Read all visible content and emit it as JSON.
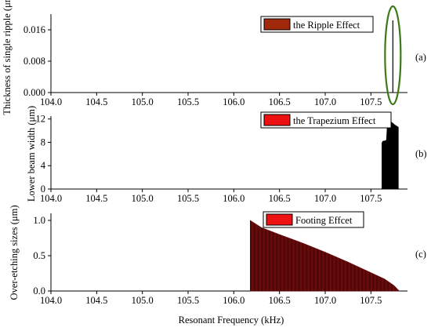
{
  "chart_data": [
    {
      "id": "a",
      "type": "line",
      "panel_label": "(a)",
      "ylabel": "Thickness of single ripple (μm)",
      "xlabel": "",
      "xlim": [
        104.0,
        107.9
      ],
      "ylim": [
        0,
        0.02
      ],
      "xticks": [
        "104.0",
        "104.5",
        "105.0",
        "105.5",
        "106.0",
        "106.5",
        "107.0",
        "107.5"
      ],
      "yticks": [
        "0.000",
        "0.008",
        "0.016"
      ],
      "legend": {
        "label": "the Ripple Effect",
        "color": "#a0290c",
        "placement": "top-center"
      },
      "series": [
        {
          "color": "#000000",
          "x": [
            107.74,
            107.74
          ],
          "y": [
            0.0,
            0.0184
          ]
        }
      ],
      "highlight": {
        "shape": "ellipse",
        "color": "#3c7a19",
        "x": 107.74,
        "y_range": [
          -0.003,
          0.022
        ]
      },
      "grid": false
    },
    {
      "id": "b",
      "type": "area",
      "panel_label": "(b)",
      "ylabel": "Lower beam width (μm)",
      "xlabel": "",
      "xlim": [
        104.0,
        107.9
      ],
      "ylim": [
        0,
        12.5
      ],
      "xticks": [
        "104.0",
        "104.5",
        "105.0",
        "105.5",
        "106.0",
        "106.5",
        "107.0",
        "107.5"
      ],
      "yticks": [
        "0",
        "4",
        "8",
        "12"
      ],
      "legend": {
        "label": "the Trapezium Effect",
        "color": "#ee1111",
        "placement": "top-center"
      },
      "series": [
        {
          "color": "#000000",
          "x": [
            107.62,
            107.63,
            107.66,
            107.67,
            107.68,
            107.7,
            107.73,
            107.76,
            107.79,
            107.8
          ],
          "y": [
            7.9,
            8.2,
            8.3,
            8.4,
            11.3,
            11.6,
            11.4,
            11.0,
            10.7,
            10.6
          ]
        }
      ],
      "grid": false
    },
    {
      "id": "c",
      "type": "area",
      "panel_label": "(c)",
      "ylabel": "Over-etching sizes (μm)",
      "xlabel": "Resonant Frequency (kHz)",
      "xlim": [
        104.0,
        107.9
      ],
      "ylim": [
        0,
        1.1
      ],
      "xticks": [
        "104.0",
        "104.5",
        "105.0",
        "105.5",
        "106.0",
        "106.5",
        "107.0",
        "107.5"
      ],
      "yticks": [
        "0.0",
        "0.5",
        "1.0"
      ],
      "legend": {
        "label": "Footing Effcet",
        "color": "#ee1111",
        "placement": "top-center"
      },
      "series": [
        {
          "color": "#8b1010",
          "x": [
            106.18,
            106.3,
            106.5,
            106.75,
            107.0,
            107.25,
            107.5,
            107.65,
            107.75,
            107.81
          ],
          "y": [
            1.0,
            0.9,
            0.8,
            0.68,
            0.55,
            0.41,
            0.26,
            0.17,
            0.08,
            0.0
          ]
        }
      ],
      "grid": false
    }
  ]
}
